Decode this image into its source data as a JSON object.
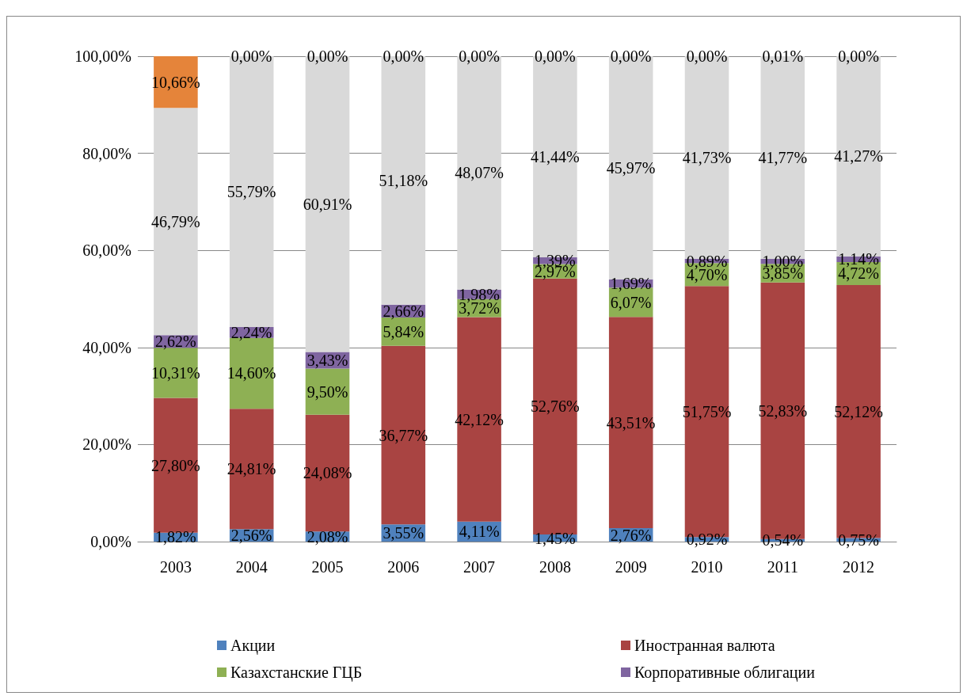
{
  "chart_data": {
    "type": "bar",
    "stacked": true,
    "categories": [
      "2003",
      "2004",
      "2005",
      "2006",
      "2007",
      "2008",
      "2009",
      "2010",
      "2011",
      "2012"
    ],
    "ylim": [
      0,
      100
    ],
    "yticks": [
      {
        "value": 0,
        "label": "0,00%"
      },
      {
        "value": 20,
        "label": "20,00%"
      },
      {
        "value": 40,
        "label": "40,00%"
      },
      {
        "value": 60,
        "label": "60,00%"
      },
      {
        "value": 80,
        "label": "80,00%"
      },
      {
        "value": 100,
        "label": "100,00%"
      }
    ],
    "grid": "y",
    "legend": "bottom",
    "series": [
      {
        "name": "Акции",
        "color": "#4f81bd",
        "values": [
          1.82,
          2.56,
          2.08,
          3.55,
          4.11,
          1.45,
          2.76,
          0.92,
          0.54,
          0.75
        ],
        "value_labels": [
          "1,82%",
          "2,56%",
          "2,08%",
          "3,55%",
          "4,11%",
          "1,45%",
          "2,76%",
          "0,92%",
          "0,54%",
          "0,75%"
        ]
      },
      {
        "name": "Иностранная валюта",
        "color": "#a94442",
        "values": [
          27.8,
          24.81,
          24.08,
          36.77,
          42.12,
          52.76,
          43.51,
          51.75,
          52.83,
          52.12
        ],
        "value_labels": [
          "27,80%",
          "24,81%",
          "24,08%",
          "36,77%",
          "42,12%",
          "52,76%",
          "43,51%",
          "51,75%",
          "52,83%",
          "52,12%"
        ]
      },
      {
        "name": "Казахстанские ГЦБ",
        "color": "#8eb054",
        "values": [
          10.31,
          14.6,
          9.5,
          5.84,
          3.72,
          2.97,
          6.07,
          4.7,
          3.85,
          4.72
        ],
        "value_labels": [
          "10,31%",
          "14,60%",
          "9,50%",
          "5,84%",
          "3,72%",
          "2,97%",
          "6,07%",
          "4,70%",
          "3,85%",
          "4,72%"
        ]
      },
      {
        "name": "Корпоративные облигации",
        "color": "#7f65a0",
        "values": [
          2.62,
          2.24,
          3.43,
          2.66,
          1.98,
          1.39,
          1.69,
          0.89,
          1.0,
          1.14
        ],
        "value_labels": [
          "2,62%",
          "2,24%",
          "3,43%",
          "2,66%",
          "1,98%",
          "1,39%",
          "1,69%",
          "0,89%",
          "1,00%",
          "1,14%"
        ]
      },
      {
        "color": "#d9d9d9",
        "values": [
          46.79,
          55.79,
          60.91,
          51.18,
          48.07,
          41.44,
          45.97,
          41.73,
          41.77,
          41.27
        ],
        "value_labels": [
          "46,79%",
          "55,79%",
          "60,91%",
          "51,18%",
          "48,07%",
          "41,44%",
          "45,97%",
          "41,73%",
          "41,77%",
          "41,27%"
        ]
      },
      {
        "color": "#e5843a",
        "values": [
          10.66,
          0,
          0,
          0,
          0,
          0,
          0,
          0,
          0.01,
          0
        ],
        "value_labels": [
          "10,66%",
          "0,00%",
          "0,00%",
          "0,00%",
          "0,00%",
          "0,00%",
          "0,00%",
          "0,00%",
          "0,01%",
          "0,00%"
        ]
      }
    ]
  }
}
